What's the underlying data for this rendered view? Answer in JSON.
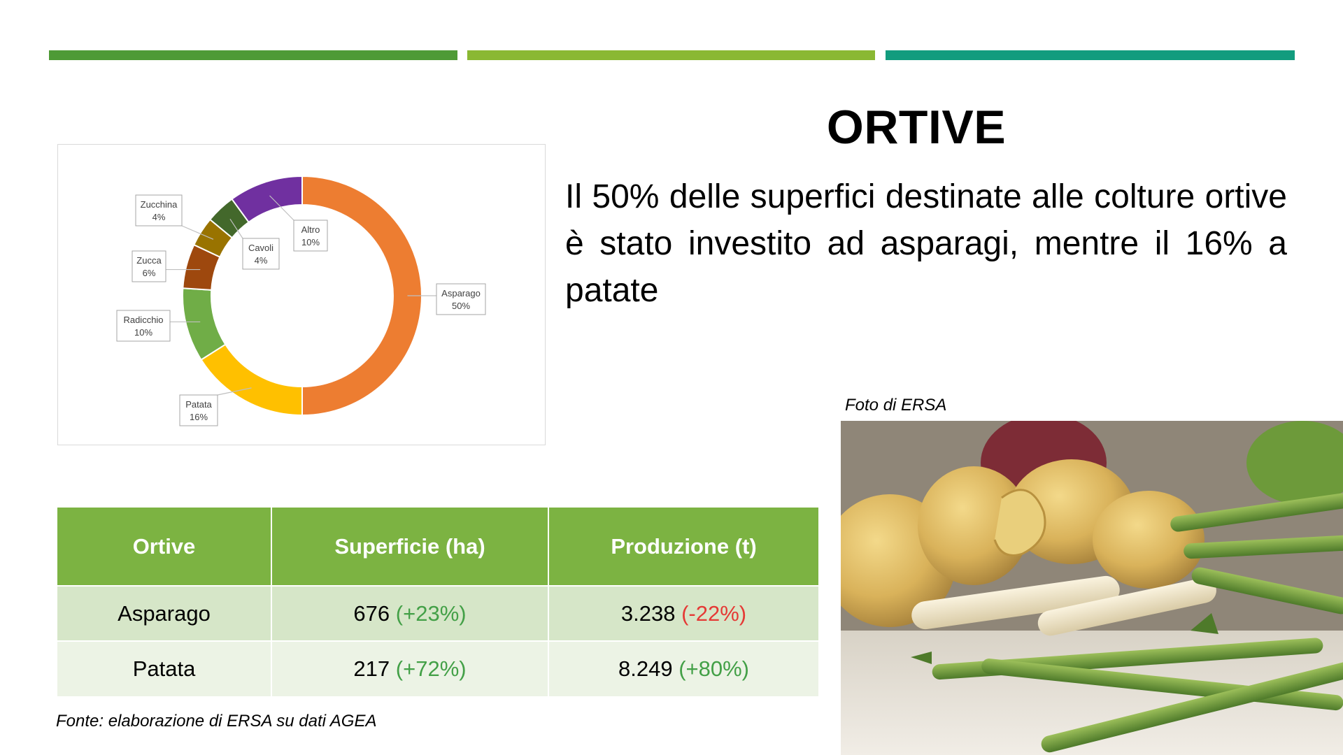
{
  "colors": {
    "bar1": "#4e9a36",
    "bar2": "#8ab833",
    "bar3": "#129c7e"
  },
  "title": "ORTIVE",
  "body_text": "Il 50% delle superfici destinate alle colture ortive è stato investito ad asparagi, mentre il 16% a patate",
  "chart_data": {
    "type": "pie",
    "variant": "donut",
    "categories": [
      "Asparago",
      "Patata",
      "Radicchio",
      "Zucca",
      "Zucchina",
      "Cavoli",
      "Altro"
    ],
    "values": [
      50,
      16,
      10,
      6,
      4,
      4,
      10
    ],
    "labels": [
      "50%",
      "16%",
      "10%",
      "6%",
      "4%",
      "4%",
      "10%"
    ],
    "colors": [
      "#ed7d31",
      "#ffc000",
      "#70ad47",
      "#9e480e",
      "#997300",
      "#43682b",
      "#7030a0"
    ]
  },
  "table": {
    "headers": [
      "Ortive",
      "Superficie (ha)",
      "Produzione (t)"
    ],
    "rows": [
      {
        "name": "Asparago",
        "sup_value": "676",
        "sup_change": "(+23%)",
        "sup_sign": "pos",
        "prod_value": "3.238",
        "prod_change": "(-22%)",
        "prod_sign": "neg"
      },
      {
        "name": "Patata",
        "sup_value": "217",
        "sup_change": "(+72%)",
        "sup_sign": "pos",
        "prod_value": "8.249",
        "prod_change": "(+80%)",
        "prod_sign": "pos"
      }
    ]
  },
  "source": "Fonte: elaborazione di ERSA su dati AGEA",
  "photo_caption": "Foto di ERSA"
}
